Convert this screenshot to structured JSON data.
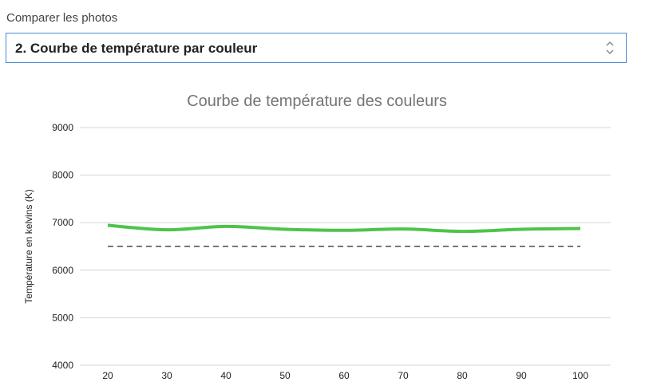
{
  "form": {
    "label": "Comparer les photos",
    "selected": "2. Courbe de température par couleur",
    "icon": "chevron-up-down-icon"
  },
  "chart_data": {
    "type": "line",
    "title": "Courbe de température des couleurs",
    "ylabel": "Température en kelvins (K)",
    "xlabel": "",
    "x": [
      20,
      30,
      40,
      50,
      60,
      70,
      80,
      90,
      100
    ],
    "ylim": [
      4000,
      9000
    ],
    "yticks": [
      4000,
      5000,
      6000,
      7000,
      8000,
      9000
    ],
    "grid": true,
    "series": [
      {
        "values": [
          6944,
          6850,
          6922,
          6861,
          6839,
          6867,
          6817,
          6861,
          6878
        ],
        "color": "#4fc34a",
        "style": "solid"
      },
      {
        "values": [
          6500,
          6500,
          6500,
          6500,
          6500,
          6500,
          6500,
          6500,
          6500
        ],
        "color": "#777777",
        "style": "dashed"
      }
    ]
  }
}
